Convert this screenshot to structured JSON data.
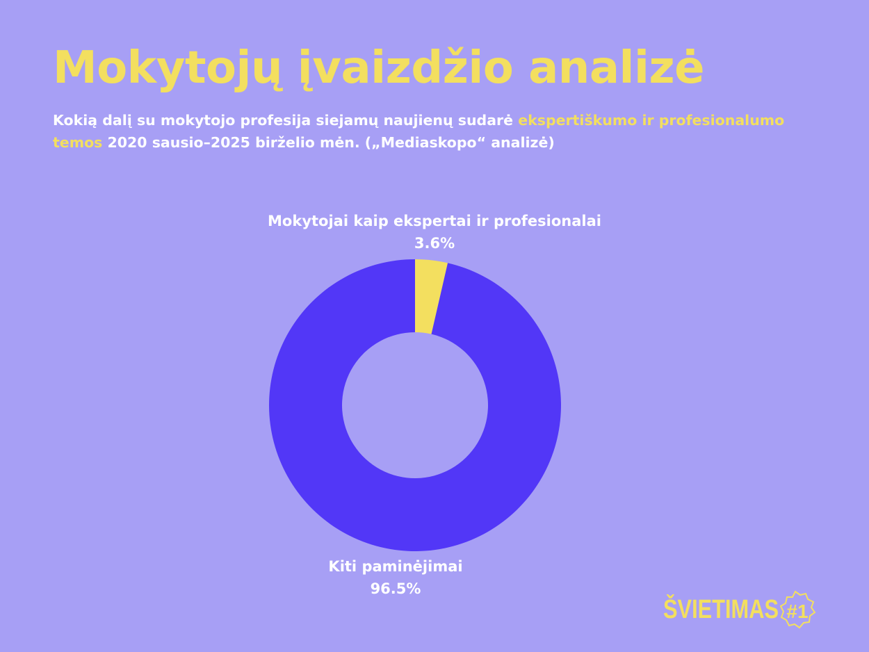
{
  "header": {
    "title": "Mokytojų įvaizdžio analizė",
    "subtitle_part1": "Kokią dalį su mokytojo profesija siejamų naujienų sudarė ",
    "subtitle_highlight": "ekspertiškumo ir profesionalumo temos",
    "subtitle_part2": " 2020 sausio–2025 birželio mėn. („Mediaskopo“ analizė)"
  },
  "chart_data": {
    "type": "pie",
    "donut": true,
    "slices": [
      {
        "label": "Mokytojai kaip ekspertai ir profesionalai",
        "value": 3.6,
        "display": "3.6%",
        "color": "#f3df5f"
      },
      {
        "label": "Kiti paminėjimai",
        "value": 96.5,
        "display": "96.5%",
        "color": "#5237f7"
      }
    ]
  },
  "logo": {
    "text": "ŠVIETIMAS",
    "mark": "#1"
  },
  "colors": {
    "background": "#a79ff5",
    "accent": "#f3df5f",
    "primary": "#5237f7",
    "text": "#ffffff"
  }
}
